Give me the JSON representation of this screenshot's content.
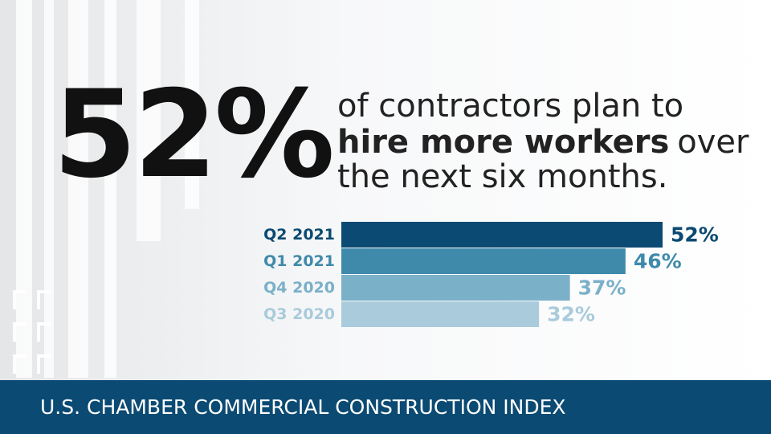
{
  "headline": "52%",
  "statement": {
    "line1": "of contractors plan to",
    "bold": "hire more workers",
    "after": "over",
    "line3": "the next six months."
  },
  "chart_data": {
    "type": "bar",
    "categories": [
      "Q2 2021",
      "Q1 2021",
      "Q4 2020",
      "Q3 2020"
    ],
    "values": [
      52,
      46,
      37,
      32
    ],
    "value_labels": [
      "52%",
      "46%",
      "37%",
      "32%"
    ],
    "colors": [
      "#0b4a72",
      "#3f8aab",
      "#7ab0c8",
      "#a9cbdb"
    ]
  },
  "footer": "U.S. CHAMBER COMMERCIAL CONSTRUCTION INDEX"
}
